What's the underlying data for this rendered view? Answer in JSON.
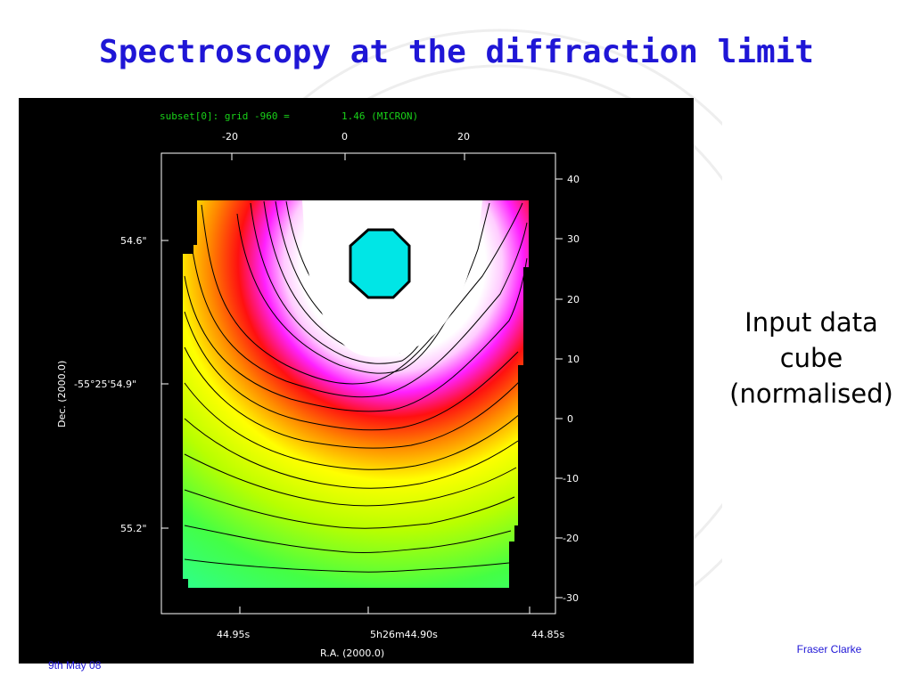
{
  "slide": {
    "title": "Spectroscopy at the diffraction limit",
    "caption_lines": [
      "Input data",
      "cube",
      "(normalised)"
    ],
    "author": "Fraser Clarke",
    "date": "9th May 08"
  },
  "figure": {
    "header_left": "subset[0]:  grid -960  =",
    "header_right": "1.46 (MICRON)",
    "top_ticks": [
      "-20",
      "0",
      "20"
    ],
    "right_ticks": [
      "40",
      "30",
      "20",
      "10",
      "0",
      "-10",
      "-20",
      "-30"
    ],
    "left_ticks": [
      "54.6\"",
      "-55°25'54.9\"",
      "55.2\""
    ],
    "left_axis_label": "Dec. (2000.0)",
    "bottom_ticks": [
      "44.95s",
      "5h26m44.90s",
      "44.85s"
    ],
    "bottom_axis_label": "R.A. (2000.0)",
    "colors": {
      "background": "#000000",
      "header_text": "#19d219",
      "axis": "#ffffff",
      "outer_green": "#22ffa0",
      "mid_yellow": "#ffff00",
      "inner_red": "#ff1010",
      "inner_magenta": "#ff20ff",
      "core_white": "#ffffff",
      "octagon": "#00e6e6"
    }
  }
}
